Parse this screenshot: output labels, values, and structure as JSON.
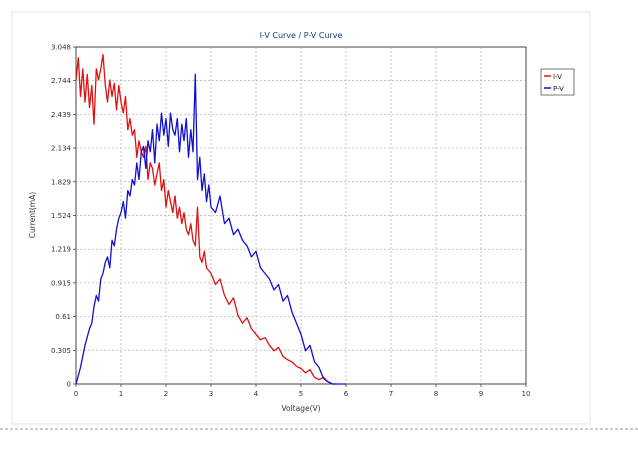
{
  "chart_data": {
    "type": "line",
    "title": "I-V Curve / P-V Curve",
    "xlabel": "Voltage(V)",
    "ylabel": "Current(mA)",
    "xlim": [
      0,
      10
    ],
    "ylim": [
      0,
      3.048
    ],
    "x_ticks": [
      "0",
      "1",
      "2",
      "3",
      "4",
      "5",
      "6",
      "7",
      "8",
      "9",
      "10"
    ],
    "y_ticks": [
      "0",
      "0.305",
      "0.61",
      "0.915",
      "1.219",
      "1.524",
      "1.829",
      "2.134",
      "2.439",
      "2.744",
      "3.048"
    ],
    "grid": true,
    "legend_position": "top-right",
    "series": [
      {
        "name": "I-V",
        "color": "#e01010",
        "x": [
          0,
          0.05,
          0.1,
          0.15,
          0.2,
          0.25,
          0.3,
          0.35,
          0.4,
          0.45,
          0.5,
          0.55,
          0.6,
          0.65,
          0.7,
          0.75,
          0.8,
          0.85,
          0.9,
          0.95,
          1.0,
          1.05,
          1.1,
          1.15,
          1.2,
          1.25,
          1.3,
          1.35,
          1.4,
          1.45,
          1.5,
          1.55,
          1.6,
          1.65,
          1.7,
          1.75,
          1.8,
          1.85,
          1.9,
          1.95,
          2.0,
          2.05,
          2.1,
          2.15,
          2.2,
          2.25,
          2.3,
          2.35,
          2.4,
          2.45,
          2.5,
          2.55,
          2.6,
          2.65,
          2.7,
          2.75,
          2.8,
          2.85,
          2.9,
          3.0,
          3.1,
          3.2,
          3.3,
          3.4,
          3.5,
          3.6,
          3.7,
          3.8,
          3.9,
          4.0,
          4.1,
          4.2,
          4.3,
          4.4,
          4.5,
          4.6,
          4.7,
          4.8,
          4.9,
          5.0,
          5.1,
          5.2,
          5.3,
          5.4,
          5.5,
          5.6,
          5.7,
          5.8
        ],
        "values": [
          2.75,
          2.95,
          2.6,
          2.85,
          2.55,
          2.8,
          2.5,
          2.7,
          2.35,
          2.85,
          2.75,
          2.85,
          2.98,
          2.7,
          2.55,
          2.75,
          2.6,
          2.72,
          2.48,
          2.7,
          2.55,
          2.45,
          2.6,
          2.3,
          2.4,
          2.25,
          2.3,
          2.05,
          2.2,
          2.1,
          2.05,
          2.15,
          1.85,
          2.0,
          1.95,
          1.8,
          1.9,
          2.0,
          1.75,
          1.85,
          1.6,
          1.75,
          1.65,
          1.55,
          1.7,
          1.5,
          1.6,
          1.45,
          1.55,
          1.4,
          1.35,
          1.45,
          1.3,
          1.25,
          1.6,
          1.15,
          1.1,
          1.2,
          1.05,
          1.0,
          0.9,
          0.95,
          0.8,
          0.72,
          0.78,
          0.62,
          0.55,
          0.6,
          0.5,
          0.45,
          0.4,
          0.42,
          0.35,
          0.3,
          0.33,
          0.25,
          0.22,
          0.2,
          0.16,
          0.14,
          0.1,
          0.13,
          0.06,
          0.04,
          0.06,
          0.02,
          0.0,
          0.0
        ]
      },
      {
        "name": "P-V",
        "color": "#1010d0",
        "x": [
          0,
          0.1,
          0.2,
          0.3,
          0.35,
          0.4,
          0.45,
          0.5,
          0.55,
          0.6,
          0.65,
          0.7,
          0.75,
          0.8,
          0.85,
          0.9,
          0.95,
          1.0,
          1.05,
          1.1,
          1.15,
          1.2,
          1.25,
          1.3,
          1.35,
          1.4,
          1.45,
          1.5,
          1.55,
          1.6,
          1.65,
          1.7,
          1.75,
          1.8,
          1.85,
          1.9,
          1.95,
          2.0,
          2.05,
          2.1,
          2.15,
          2.2,
          2.25,
          2.3,
          2.35,
          2.4,
          2.45,
          2.5,
          2.55,
          2.6,
          2.65,
          2.7,
          2.75,
          2.8,
          2.85,
          2.9,
          2.95,
          3.0,
          3.1,
          3.2,
          3.3,
          3.4,
          3.5,
          3.6,
          3.7,
          3.8,
          3.9,
          4.0,
          4.1,
          4.2,
          4.3,
          4.4,
          4.5,
          4.6,
          4.7,
          4.8,
          4.9,
          5.0,
          5.1,
          5.2,
          5.3,
          5.4,
          5.5,
          5.6,
          5.7,
          5.8,
          6.0
        ],
        "values": [
          0.0,
          0.15,
          0.35,
          0.5,
          0.55,
          0.7,
          0.8,
          0.75,
          0.95,
          1.0,
          1.1,
          1.15,
          1.05,
          1.3,
          1.25,
          1.4,
          1.5,
          1.55,
          1.65,
          1.5,
          1.75,
          1.7,
          1.85,
          1.8,
          2.0,
          1.85,
          2.1,
          2.15,
          1.95,
          2.2,
          2.1,
          2.3,
          2.0,
          2.35,
          2.2,
          2.45,
          2.25,
          2.4,
          2.15,
          2.45,
          2.3,
          2.25,
          2.4,
          2.1,
          2.35,
          2.2,
          2.4,
          2.05,
          2.3,
          2.1,
          2.8,
          1.85,
          2.05,
          1.75,
          1.9,
          1.65,
          1.8,
          1.6,
          1.55,
          1.7,
          1.45,
          1.5,
          1.35,
          1.4,
          1.3,
          1.25,
          1.15,
          1.2,
          1.05,
          1.0,
          0.95,
          0.85,
          0.9,
          0.75,
          0.8,
          0.65,
          0.55,
          0.45,
          0.3,
          0.35,
          0.2,
          0.15,
          0.05,
          0.02,
          0.0,
          0.0,
          0.0
        ]
      }
    ]
  }
}
